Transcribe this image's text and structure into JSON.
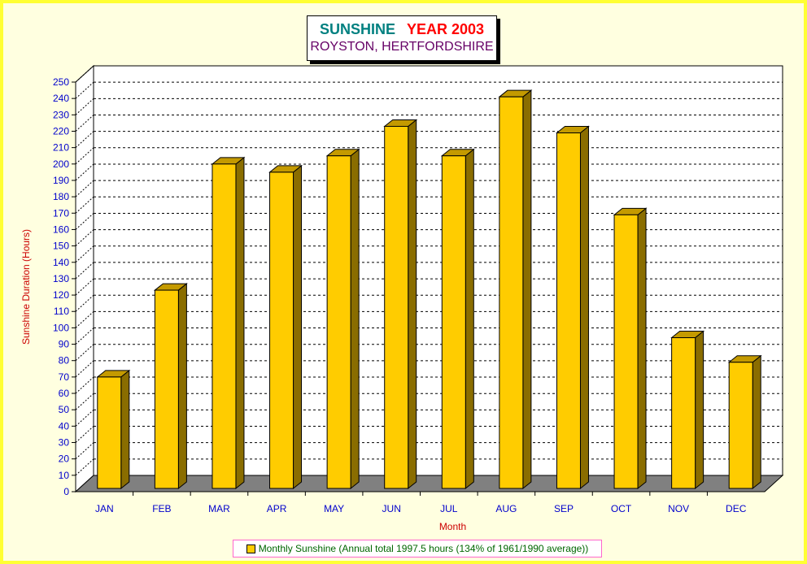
{
  "title": {
    "part1": "SUNSHINE",
    "part2": "YEAR 2003",
    "subtitle": "ROYSTON, HERTFORDSHIRE"
  },
  "colors": {
    "bar_front": "#ffcc00",
    "bar_side": "#8a6d00",
    "bar_top": "#c49a00",
    "axis_text": "#0000cc",
    "axis_label": "#cc0000",
    "title_teal": "#008080",
    "title_red": "#ff0000",
    "subtitle": "#660066",
    "legend_text": "#006600",
    "frame": "#ffff33"
  },
  "chart_data": {
    "type": "bar",
    "categories": [
      "JAN",
      "FEB",
      "MAR",
      "APR",
      "MAY",
      "JUN",
      "JUL",
      "AUG",
      "SEP",
      "OCT",
      "NOV",
      "DEC"
    ],
    "series": [
      {
        "name": "Monthly Sunshine (Annual total 1997.5 hours (134% of 1961/1990 average))",
        "values": [
          68,
          121,
          198,
          193,
          203,
          221,
          203,
          239,
          217,
          167,
          92,
          77
        ]
      }
    ],
    "xlabel": "Month",
    "ylabel": "Sunshine Duration (Hours)",
    "ylim": [
      0,
      250
    ],
    "ytick_step": 10,
    "grid": true,
    "legend": "bottom"
  }
}
